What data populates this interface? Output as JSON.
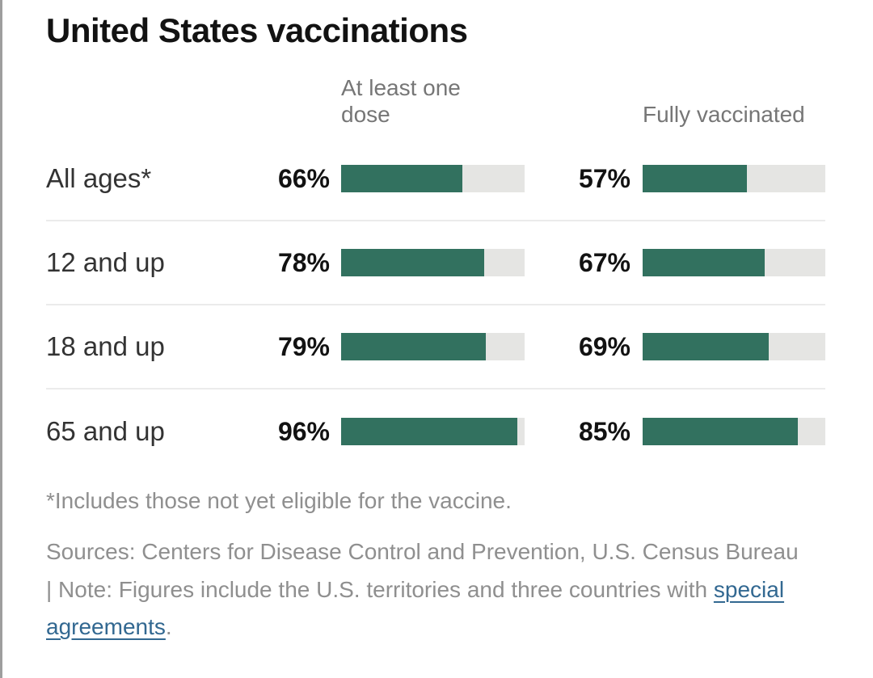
{
  "title": "United States vaccinations",
  "columns": [
    {
      "label": "At least one dose"
    },
    {
      "label": "Fully vaccinated"
    }
  ],
  "rows": [
    {
      "label": "All ages*",
      "dose1": {
        "label": "66%",
        "value": 66
      },
      "full": {
        "label": "57%",
        "value": 57
      }
    },
    {
      "label": "12 and up",
      "dose1": {
        "label": "78%",
        "value": 78
      },
      "full": {
        "label": "67%",
        "value": 67
      }
    },
    {
      "label": "18 and up",
      "dose1": {
        "label": "79%",
        "value": 79
      },
      "full": {
        "label": "69%",
        "value": 69
      }
    },
    {
      "label": "65 and up",
      "dose1": {
        "label": "96%",
        "value": 96
      },
      "full": {
        "label": "85%",
        "value": 85
      }
    }
  ],
  "footnote": "*Includes those not yet eligible for the vaccine.",
  "sources": {
    "text_before": "Sources: Centers for Disease Control and Prevention, U.S. Census Bureau | Note: Figures include the U.S. territories and three countries with ",
    "link_text": "special agreements",
    "text_after": "."
  },
  "colors": {
    "bar_fill": "#32715f",
    "bar_track": "#e5e5e3",
    "separator": "#ebebeb",
    "link": "#326891",
    "title_text": "#121212",
    "label_text": "#333333",
    "muted_text": "#8f8f8f",
    "header_text": "#767676",
    "window_edge": "#9e9e9e"
  },
  "chart_data": {
    "type": "bar",
    "title": "United States vaccinations",
    "categories": [
      "All ages*",
      "12 and up",
      "18 and up",
      "65 and up"
    ],
    "series": [
      {
        "name": "At least one dose",
        "values": [
          66,
          78,
          79,
          96
        ]
      },
      {
        "name": "Fully vaccinated",
        "values": [
          57,
          67,
          69,
          85
        ]
      }
    ],
    "unit": "%",
    "xlim": [
      0,
      100
    ],
    "orientation": "horizontal",
    "grid": false,
    "legend_position": "column-headers-above-bars",
    "annotations": [
      "*Includes those not yet eligible for the vaccine.",
      "Sources: Centers for Disease Control and Prevention, U.S. Census Bureau | Note: Figures include the U.S. territories and three countries with special agreements."
    ]
  }
}
